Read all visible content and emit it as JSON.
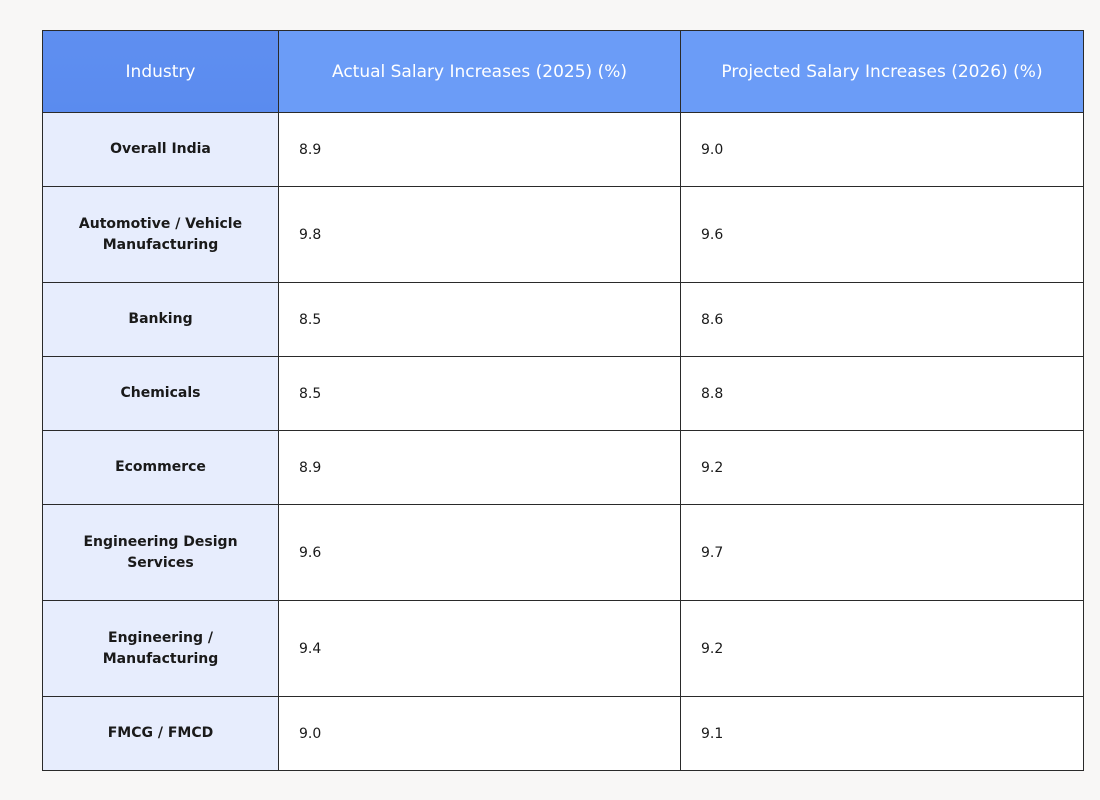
{
  "table": {
    "headers": [
      "Industry",
      "Actual Salary Increases (2025) (%)",
      "Projected Salary Increases (2026) (%)"
    ],
    "rows": [
      {
        "industry": "Overall India",
        "actual_2025": "8.9",
        "projected_2026": "9.0"
      },
      {
        "industry": "Automotive / Vehicle Manufacturing",
        "actual_2025": "9.8",
        "projected_2026": "9.6"
      },
      {
        "industry": "Banking",
        "actual_2025": "8.5",
        "projected_2026": "8.6"
      },
      {
        "industry": "Chemicals",
        "actual_2025": "8.5",
        "projected_2026": "8.8"
      },
      {
        "industry": "Ecommerce",
        "actual_2025": "8.9",
        "projected_2026": "9.2"
      },
      {
        "industry": "Engineering Design Services",
        "actual_2025": "9.6",
        "projected_2026": "9.7"
      },
      {
        "industry": "Engineering / Manufacturing",
        "actual_2025": "9.4",
        "projected_2026": "9.2"
      },
      {
        "industry": "FMCG / FMCD",
        "actual_2025": "9.0",
        "projected_2026": "9.1"
      }
    ]
  },
  "colors": {
    "header_bg": "#6b9cf7",
    "industry_col_bg": "#e7edfd",
    "border": "#2a2a2a",
    "page_bg": "#f8f7f6"
  }
}
